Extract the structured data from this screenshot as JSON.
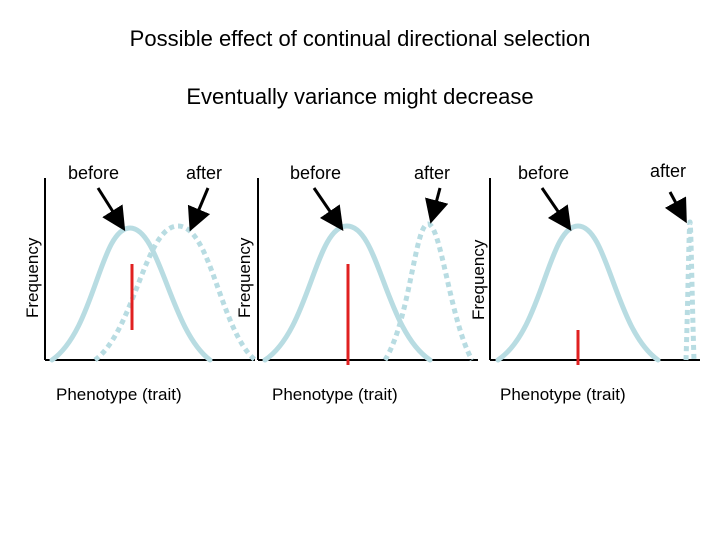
{
  "title": "Possible effect of continual directional selection",
  "subtitle": "Eventually variance might decrease",
  "panels": [
    {
      "before_label": "before",
      "after_label": "after",
      "ylabel": "Frequency",
      "xlabel": "Phenotype (trait)"
    },
    {
      "before_label": "before",
      "after_label": "after",
      "ylabel": "Frequency",
      "xlabel": "Phenotype (trait)"
    },
    {
      "before_label": "before",
      "after_label": "after",
      "ylabel": "Frequency",
      "xlabel": "Phenotype (trait)"
    }
  ],
  "colors": {
    "curve": "#b8dce2",
    "mean_line": "#e02020",
    "axis": "#000000",
    "arrow": "#000000"
  }
}
